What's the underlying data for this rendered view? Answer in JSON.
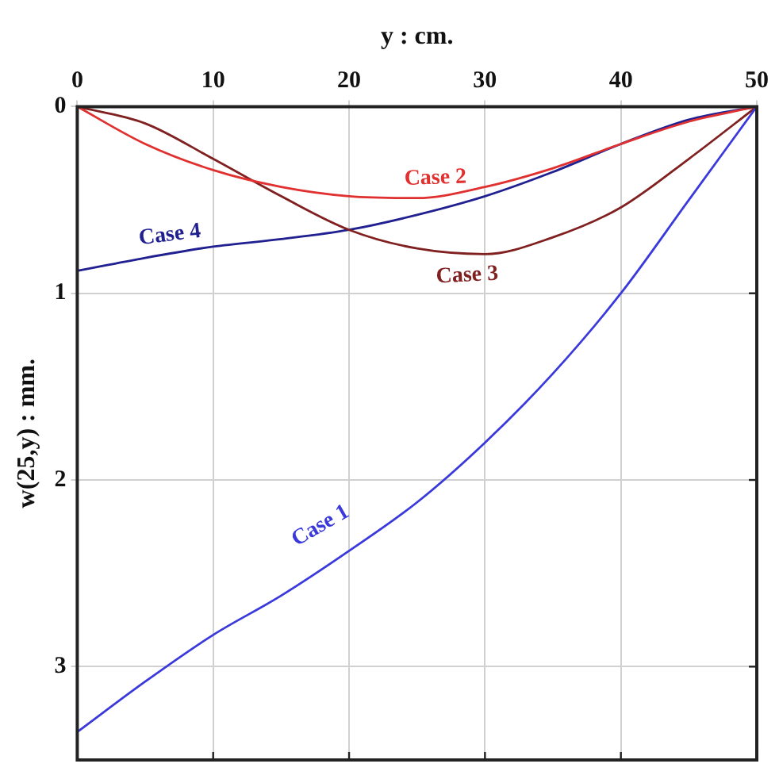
{
  "chart_data": {
    "type": "line",
    "xlabel": "y : cm.",
    "ylabel": "w(25,y) : mm.",
    "xlim": [
      0,
      50
    ],
    "xticks": [
      0,
      10,
      20,
      30,
      40,
      50
    ],
    "ylim": [
      3.5,
      0
    ],
    "yticks": [
      0,
      1,
      2,
      3
    ],
    "grid": true,
    "legend": false,
    "marker": "none",
    "line_style": "solid",
    "x": [
      0,
      5,
      10,
      15,
      20,
      25,
      30,
      35,
      40,
      45,
      50
    ],
    "series": [
      {
        "name": "Case 1",
        "color": "#3a3adc",
        "values": [
          3.35,
          3.08,
          2.83,
          2.62,
          2.38,
          2.12,
          1.8,
          1.43,
          1.0,
          0.5,
          0
        ]
      },
      {
        "name": "Case 2",
        "color": "#e03030",
        "values": [
          0,
          0.2,
          0.34,
          0.43,
          0.48,
          0.49,
          0.43,
          0.33,
          0.2,
          0.08,
          0
        ]
      },
      {
        "name": "Case 3",
        "color": "#802020",
        "values": [
          0,
          0.09,
          0.28,
          0.48,
          0.66,
          0.76,
          0.79,
          0.7,
          0.54,
          0.28,
          0
        ]
      },
      {
        "name": "Case 4",
        "color": "#202090",
        "values": [
          0.88,
          0.81,
          0.75,
          0.71,
          0.66,
          0.58,
          0.48,
          0.35,
          0.2,
          0.07,
          0
        ]
      }
    ]
  }
}
